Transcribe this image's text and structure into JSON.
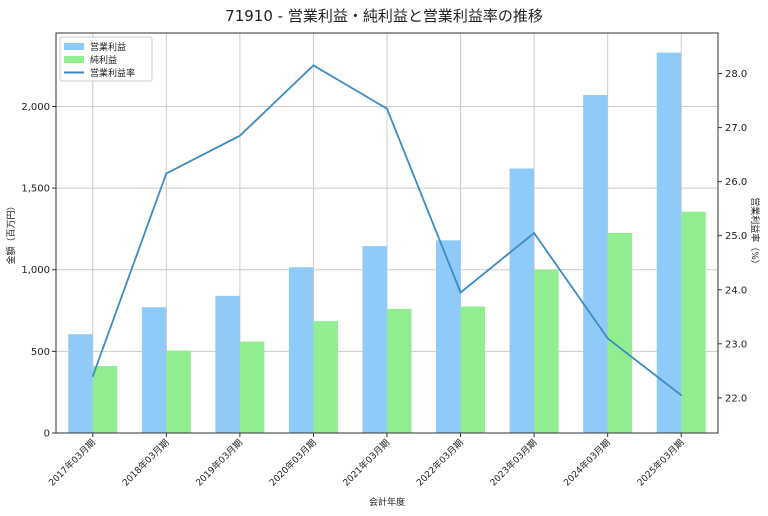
{
  "chart_data": {
    "type": "bar",
    "title": "71910 - 営業利益・純利益と営業利益率の推移",
    "xlabel": "会計年度",
    "ylabel": "金額（百万円）",
    "y2label": "営業利益率（%）",
    "categories": [
      "2017年03月期",
      "2018年03月期",
      "2019年03月期",
      "2020年03月期",
      "2021年03月期",
      "2022年03月期",
      "2023年03月期",
      "2024年03月期",
      "2025年03月期"
    ],
    "series": [
      {
        "name": "営業利益",
        "kind": "bar",
        "axis": "left",
        "color": "#90caf9",
        "values": [
          605,
          770,
          840,
          1015,
          1145,
          1180,
          1620,
          2070,
          2330
        ]
      },
      {
        "name": "純利益",
        "kind": "bar",
        "axis": "left",
        "color": "#90ee90",
        "values": [
          410,
          505,
          560,
          685,
          760,
          775,
          1000,
          1225,
          1355
        ]
      },
      {
        "name": "営業利益率",
        "kind": "line",
        "axis": "right",
        "color": "#3b8bc4",
        "values": [
          22.4,
          26.15,
          26.85,
          28.15,
          27.35,
          23.95,
          25.05,
          23.1,
          22.05
        ]
      }
    ],
    "ylim": [
      0,
      2450
    ],
    "yticks": [
      0,
      500,
      1000,
      1500,
      2000
    ],
    "ytick_labels": [
      "0",
      "500",
      "1,000",
      "1,500",
      "2,000"
    ],
    "y2lim": [
      21.35,
      28.75
    ],
    "y2ticks": [
      22.0,
      23.0,
      24.0,
      25.0,
      26.0,
      27.0,
      28.0
    ],
    "y2tick_labels": [
      "22.0",
      "23.0",
      "24.0",
      "25.0",
      "26.0",
      "27.0",
      "28.0"
    ],
    "grid": true,
    "legend_position": "top-left"
  }
}
